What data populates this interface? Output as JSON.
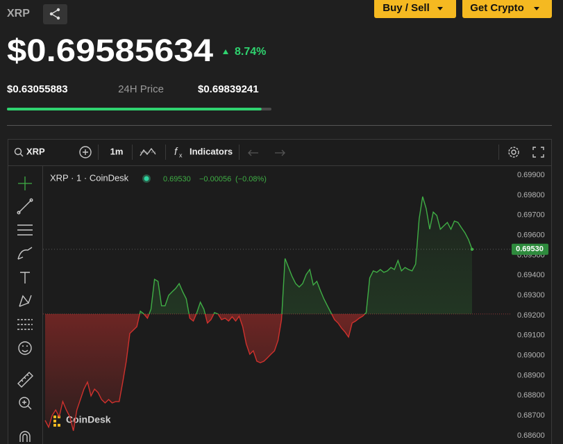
{
  "header": {
    "symbol": "XRP",
    "price": "$0.69585634",
    "change": "8.74%",
    "low": "$0.63055883",
    "range_label": "24H Price",
    "high": "$0.69839241",
    "buy_sell": "Buy / Sell",
    "get_crypto": "Get Crypto"
  },
  "toolbar": {
    "symbol": "XRP",
    "interval": "1m",
    "indicators": "Indicators"
  },
  "chart_data": {
    "type": "line",
    "legend": {
      "name": "XRP · 1 · CoinDesk",
      "last": "0.69530",
      "change": "−0.00056",
      "change_pct": "(−0.08%)"
    },
    "watermark": "CoinDesk",
    "baseline": 0.69207,
    "current": {
      "value": 0.6953,
      "label": "0.69530"
    },
    "up_color": "#3fae45",
    "down_color": "#d0312d",
    "ylim": [
      0.68558,
      0.69942
    ],
    "yticks": [
      {
        "value": 0.686,
        "label": "0.68600"
      },
      {
        "value": 0.687,
        "label": "0.68700"
      },
      {
        "value": 0.688,
        "label": "0.68800"
      },
      {
        "value": 0.689,
        "label": "0.68900"
      },
      {
        "value": 0.69,
        "label": "0.69000"
      },
      {
        "value": 0.691,
        "label": "0.69100"
      },
      {
        "value": 0.692,
        "label": "0.69200"
      },
      {
        "value": 0.693,
        "label": "0.69300"
      },
      {
        "value": 0.694,
        "label": "0.69400"
      },
      {
        "value": 0.695,
        "label": "0.69500"
      },
      {
        "value": 0.696,
        "label": "0.69600"
      },
      {
        "value": 0.697,
        "label": "0.69700"
      },
      {
        "value": 0.698,
        "label": "0.69800"
      },
      {
        "value": 0.699,
        "label": "0.69900"
      }
    ],
    "values": [
      0.68676,
      0.68642,
      0.68701,
      0.68728,
      0.68694,
      0.6877,
      0.68728,
      0.68694,
      0.68624,
      0.68728,
      0.6878,
      0.68832,
      0.68867,
      0.68798,
      0.68832,
      0.68815,
      0.6878,
      0.68763,
      0.6878,
      0.68763,
      0.6877,
      0.6877,
      0.68867,
      0.68971,
      0.6911,
      0.69127,
      0.69144,
      0.69221,
      0.69207,
      0.69186,
      0.69231,
      0.6938,
      0.6937,
      0.69248,
      0.69248,
      0.693,
      0.69318,
      0.69335,
      0.69359,
      0.69318,
      0.69283,
      0.69186,
      0.69172,
      0.69214,
      0.69266,
      0.69231,
      0.69162,
      0.69179,
      0.69214,
      0.69207,
      0.69179,
      0.69186,
      0.69172,
      0.69193,
      0.69172,
      0.69196,
      0.69144,
      0.69058,
      0.69006,
      0.69023,
      0.68971,
      0.68964,
      0.68971,
      0.68988,
      0.69006,
      0.69023,
      0.69075,
      0.69179,
      0.69484,
      0.69439,
      0.69394,
      0.69359,
      0.69342,
      0.69359,
      0.69404,
      0.69429,
      0.69352,
      0.6937,
      0.69325,
      0.69283,
      0.69248,
      0.69214,
      0.69179,
      0.69162,
      0.69137,
      0.69117,
      0.69092,
      0.69162,
      0.69172,
      0.69186,
      0.69196,
      0.69214,
      0.69387,
      0.69422,
      0.69415,
      0.69429,
      0.69415,
      0.69422,
      0.69439,
      0.69429,
      0.69474,
      0.69422,
      0.69439,
      0.69429,
      0.69422,
      0.69456,
      0.69682,
      0.69793,
      0.69734,
      0.6963,
      0.69716,
      0.69699,
      0.6963,
      0.69647,
      0.69664,
      0.6963,
      0.69671,
      0.69664,
      0.69637,
      0.69612,
      0.69578,
      0.6953
    ]
  }
}
